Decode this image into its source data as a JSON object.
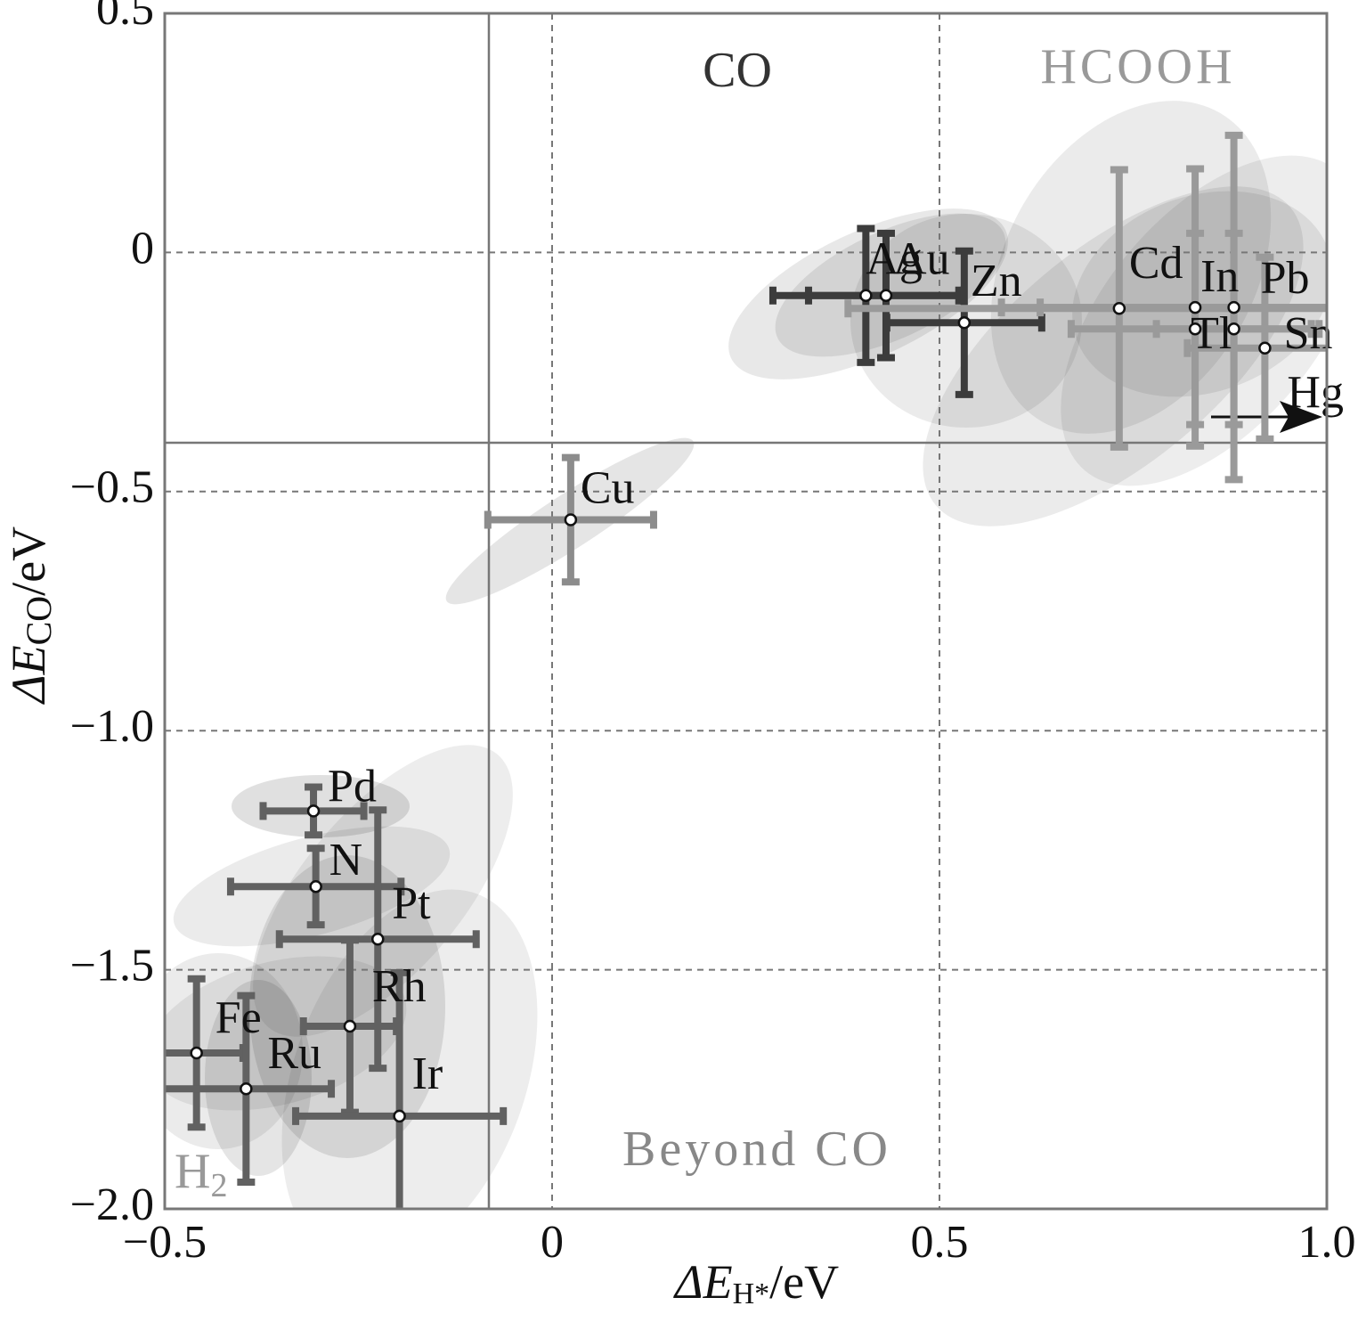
{
  "chart_data": {
    "type": "scatter",
    "xlabel": {
      "main": "ΔE",
      "sub": "H*",
      "unit": "/eV"
    },
    "ylabel": {
      "main": "ΔE",
      "sub": "CO",
      "unit": "/eV"
    },
    "xlim": [
      -0.5,
      1.0
    ],
    "ylim": [
      -2.0,
      0.5
    ],
    "xticks": [
      {
        "value": -0.5,
        "label": "−0.5"
      },
      0,
      0.5,
      {
        "value": 1.0,
        "label": "1.0"
      }
    ],
    "yticks": [
      0.5,
      0,
      {
        "value": -0.5,
        "label": "−0.5"
      },
      {
        "value": -1.0,
        "label": "−1.0"
      },
      {
        "value": -1.5,
        "label": "−1.5"
      },
      {
        "value": -2.0,
        "label": "−2.0"
      }
    ],
    "grid": true,
    "regions": {
      "co": "CO",
      "hcooh": "HCOOH",
      "beyond": "Beyond CO",
      "h2": {
        "main": "H",
        "sub": "2"
      }
    },
    "points": [
      {
        "name": "Ag",
        "x": 0.405,
        "y": -0.09,
        "xerr": 0.12,
        "yerr": 0.14,
        "color": "#3c3c3c"
      },
      {
        "name": "Au",
        "x": 0.431,
        "y": -0.09,
        "xerr": 0.1,
        "yerr": 0.13,
        "color": "#3c3c3c"
      },
      {
        "name": "Zn",
        "x": 0.532,
        "y": -0.147,
        "xerr": 0.1,
        "yerr": 0.15,
        "color": "#3c3c3c"
      },
      {
        "name": "Cd",
        "x": 0.732,
        "y": -0.117,
        "xerr": 0.35,
        "yerr": 0.29,
        "color": "#9a9a9a"
      },
      {
        "name": "In",
        "x": 0.83,
        "y": -0.115,
        "xerr": 0.2,
        "yerr": 0.29,
        "color": "#9a9a9a"
      },
      {
        "name": "Pb",
        "x": 0.88,
        "y": -0.115,
        "xerr": 0.3,
        "yerr": 0.36,
        "color": "#9a9a9a"
      },
      {
        "name": "Tl",
        "x": 0.83,
        "y": -0.16,
        "xerr": 0.16,
        "yerr": 0.2,
        "color": "#9a9a9a"
      },
      {
        "name": "Sn",
        "x": 0.88,
        "y": -0.16,
        "xerr": 0.1,
        "yerr": 0.2,
        "color": "#9a9a9a"
      },
      {
        "name": "Hg",
        "x": 0.92,
        "y": -0.2,
        "xerr": 0.1,
        "yerr": 0.19,
        "color": "#9a9a9a"
      },
      {
        "name": "Cu",
        "x": 0.024,
        "y": -0.559,
        "xerr": 0.107,
        "yerr": 0.13,
        "color": "#8c8c8c"
      },
      {
        "name": "Pd",
        "x": -0.308,
        "y": -1.168,
        "xerr": 0.065,
        "yerr": 0.05,
        "color": "#616161"
      },
      {
        "name": "N",
        "x": -0.305,
        "y": -1.326,
        "xerr": 0.11,
        "yerr": 0.08,
        "color": "#616161"
      },
      {
        "name": "Pt",
        "x": -0.225,
        "y": -1.436,
        "xerr": 0.127,
        "yerr": 0.27,
        "color": "#616161"
      },
      {
        "name": "Rh",
        "x": -0.261,
        "y": -1.618,
        "xerr": 0.06,
        "yerr": 0.18,
        "color": "#616161"
      },
      {
        "name": "Fe",
        "x": -0.459,
        "y": -1.674,
        "xerr": 0.06,
        "yerr": 0.155,
        "color": "#616161"
      },
      {
        "name": "Ru",
        "x": -0.395,
        "y": -1.749,
        "xerr": 0.11,
        "yerr": 0.195,
        "color": "#616161"
      },
      {
        "name": "Ir",
        "x": -0.197,
        "y": -1.806,
        "xerr": 0.134,
        "yerr": 0.3,
        "color": "#616161"
      }
    ]
  }
}
